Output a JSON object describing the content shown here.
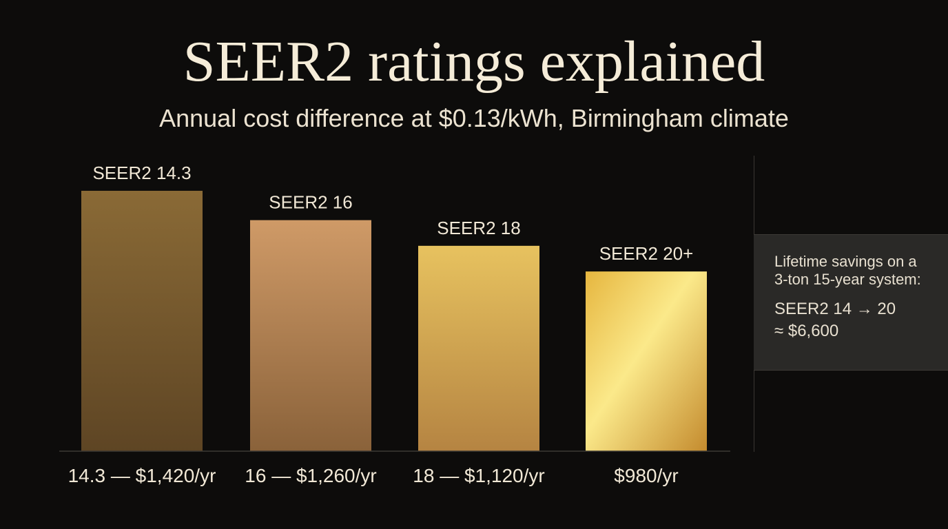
{
  "header": {
    "title": "SEER2 ratings explained",
    "subtitle": "Annual cost difference at $0.13/kWh, Birmingham climate"
  },
  "chart_data": {
    "type": "bar",
    "categories": [
      "14.3 — $1,420/yr",
      "16 — $1,260/yr",
      "18 — $1,120/yr",
      "$980/yr"
    ],
    "bar_labels": [
      "SEER2 14.3",
      "SEER2 16",
      "SEER2 18",
      "SEER2 20+"
    ],
    "values": [
      1420,
      1260,
      1120,
      980
    ],
    "title": "SEER2 ratings explained",
    "subtitle": "Annual cost difference at $0.13/kWh, Birmingham climate",
    "xlabel": "",
    "ylabel": "",
    "ylim": [
      0,
      1500
    ],
    "grid": false,
    "colors": [
      "#7d5c30",
      "#b98757",
      "#d9ae55",
      "#f5d76a"
    ]
  },
  "callout": {
    "heading": "Lifetime savings on a 3-ton 15-year system:",
    "value_line1": "SEER2 14 → 20",
    "value_line2": "≈ $6,600"
  }
}
